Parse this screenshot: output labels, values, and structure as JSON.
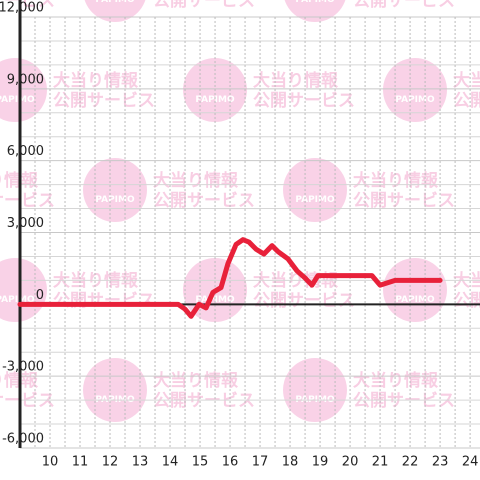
{
  "watermark": {
    "lines": [
      "大当り情報",
      "公開サービス"
    ],
    "logo": "PAPIMO"
  },
  "chart_data": {
    "type": "line",
    "xlim": [
      9,
      24.33
    ],
    "ylim": [
      -6000,
      12000
    ],
    "xticks": [
      10,
      11,
      12,
      13,
      14,
      15,
      16,
      17,
      18,
      19,
      20,
      21,
      22,
      23,
      24
    ],
    "yticks": [
      {
        "value": -6000,
        "label": "-6,000"
      },
      {
        "value": -3000,
        "label": "-3,000"
      },
      0,
      {
        "value": 3000,
        "label": "3,000"
      },
      {
        "value": 6000,
        "label": "6,000"
      },
      {
        "value": 9000,
        "label": "9,000"
      },
      {
        "value": 12000,
        "label": "12,000"
      }
    ],
    "grid": true,
    "series": [
      {
        "color": "#e8213a",
        "x": [
          9,
          14.27,
          14.5,
          14.7,
          14.97,
          15.2,
          15.43,
          15.7,
          15.93,
          16.2,
          16.43,
          16.63,
          16.87,
          17.13,
          17.4,
          17.6,
          17.93,
          18.23,
          18.5,
          18.73,
          18.93,
          19.67,
          20.73,
          21.0,
          21.5,
          23.0
        ],
        "values": [
          0,
          0,
          -200,
          -500,
          0,
          -150,
          500,
          700,
          1700,
          2500,
          2700,
          2600,
          2300,
          2100,
          2450,
          2200,
          1900,
          1400,
          1100,
          800,
          1200,
          1200,
          1200,
          800,
          1000,
          1000
        ]
      }
    ]
  }
}
